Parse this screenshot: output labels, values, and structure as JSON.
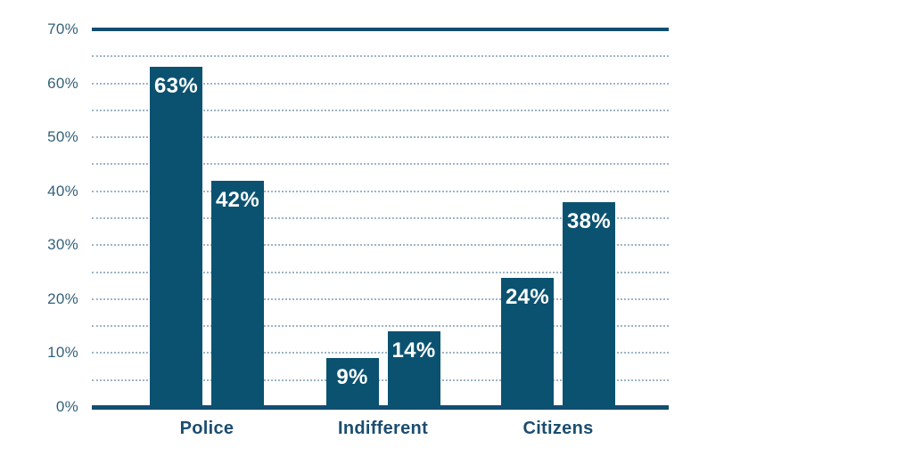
{
  "chart_data": {
    "type": "bar",
    "categories": [
      "Police",
      "Indifferent",
      "Citizens"
    ],
    "series": [
      {
        "name": "left-bar",
        "values": [
          63,
          9,
          24
        ]
      },
      {
        "name": "right-bar",
        "values": [
          42,
          14,
          38
        ]
      }
    ],
    "value_labels": [
      [
        "63%",
        "9%",
        "24%"
      ],
      [
        "42%",
        "14%",
        "38%"
      ]
    ],
    "title": "",
    "xlabel": "",
    "ylabel": "",
    "ylim": [
      0,
      70
    ],
    "y_tick_labels": [
      "0%",
      "10%",
      "20%",
      "30%",
      "40%",
      "50%",
      "60%",
      "70%"
    ],
    "y_label_step": 10,
    "y_grid_step": 5,
    "grid": "dotted",
    "legend": "none",
    "colors": {
      "bar": "#0b5271",
      "axis_line": "#134e70",
      "grid_line": "#9db5c4",
      "tick_label": "#336179",
      "category_label": "#1b4d70",
      "value_label": "#ffffff",
      "background": "#ffffff"
    }
  }
}
